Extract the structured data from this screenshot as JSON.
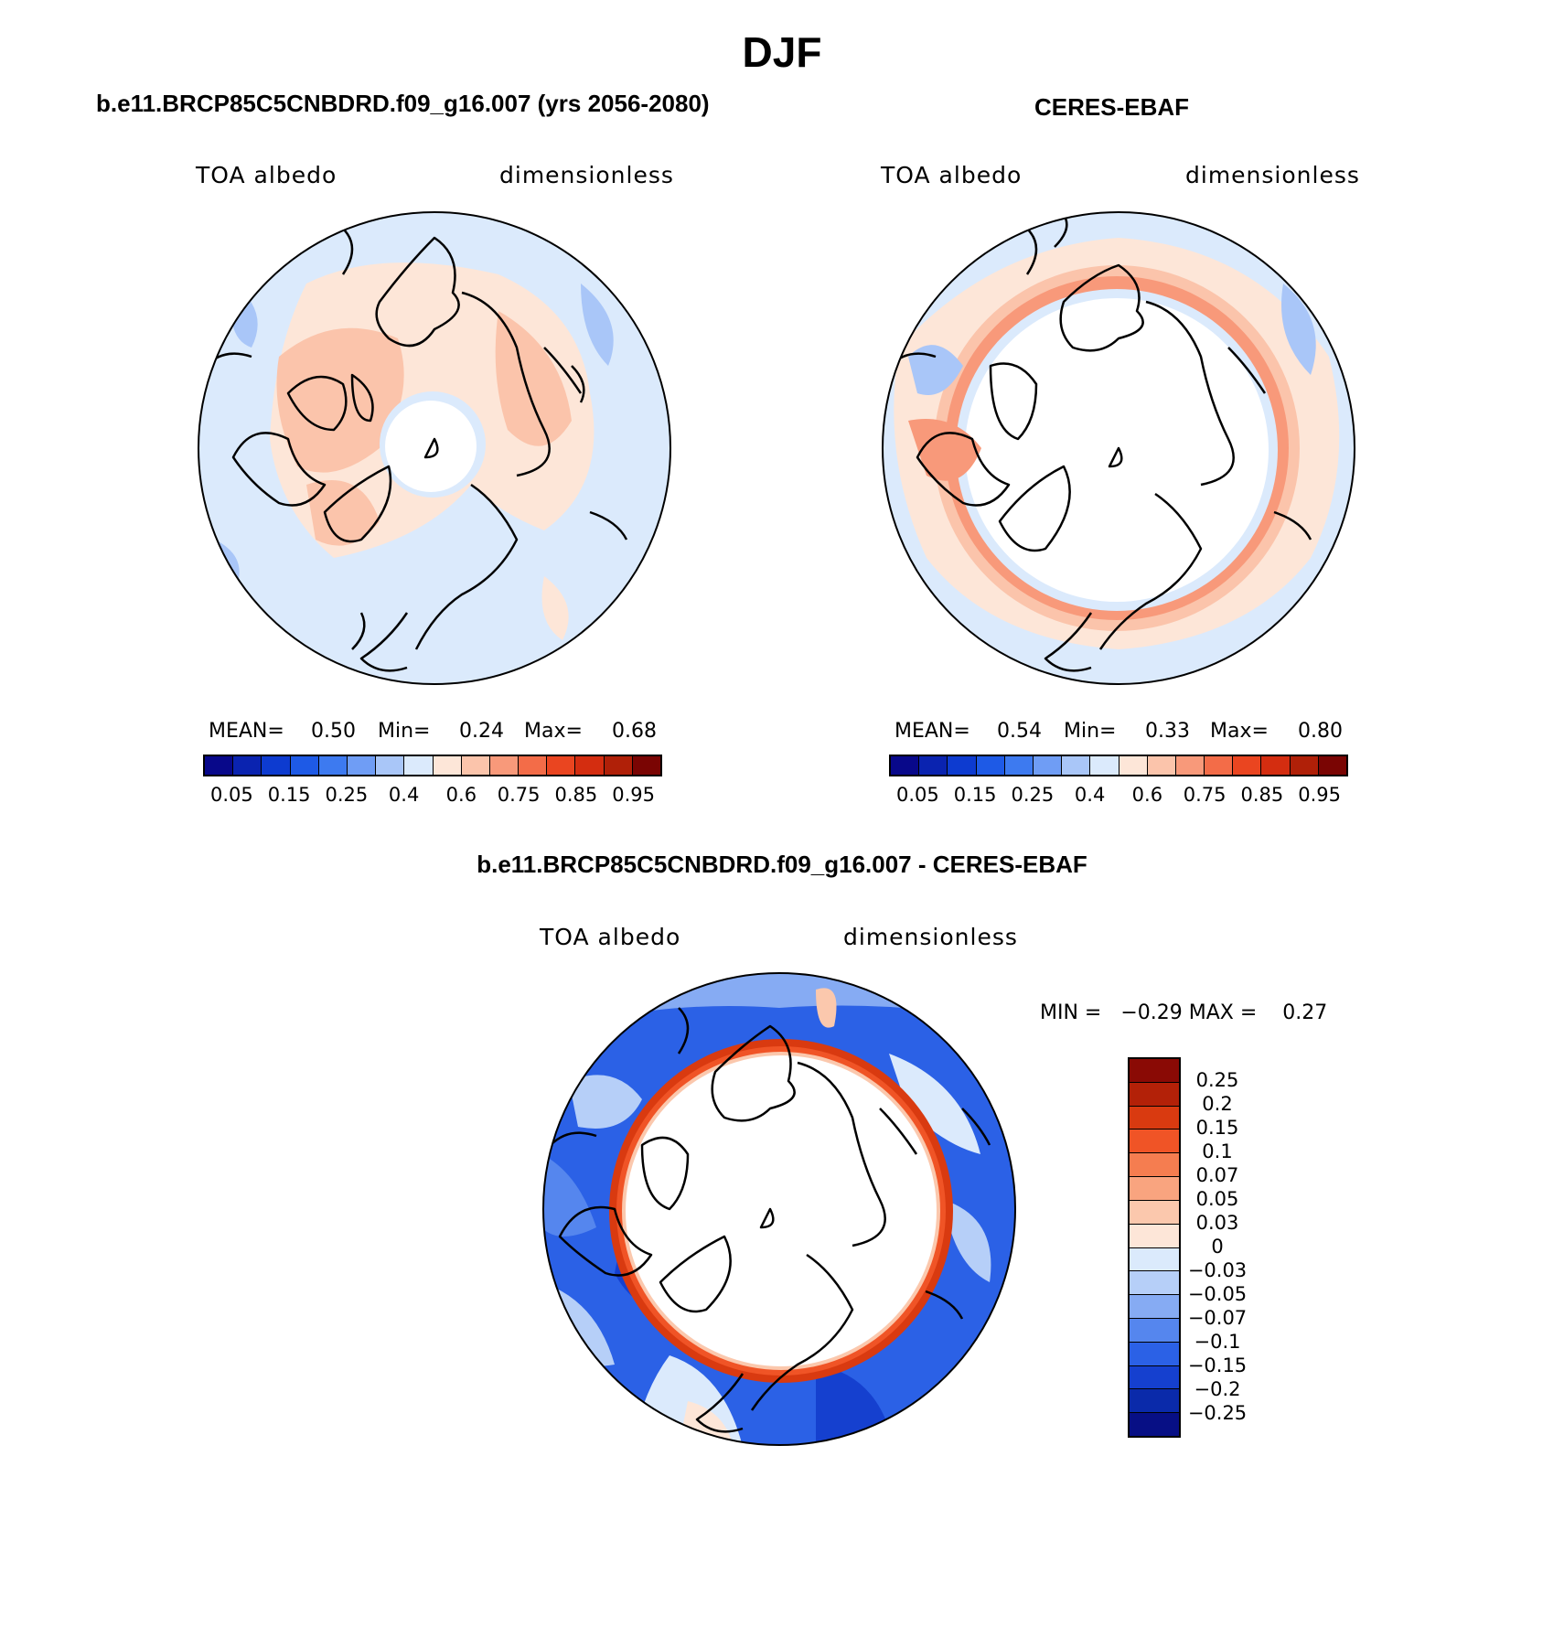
{
  "title": "DJF",
  "panels": {
    "model": {
      "title": "b.e11.BRCP85C5CNBDRD.f09_g16.007 (yrs 2056-2080)",
      "var_label": "TOA albedo",
      "units": "dimensionless",
      "stats": {
        "mean_label": "MEAN=",
        "mean": "0.50",
        "min_label": "Min=",
        "min": "0.24",
        "max_label": "Max=",
        "max": "0.68"
      }
    },
    "obs": {
      "title": "CERES-EBAF",
      "var_label": "TOA albedo",
      "units": "dimensionless",
      "stats": {
        "mean_label": "MEAN=",
        "mean": "0.54",
        "min_label": "Min=",
        "min": "0.33",
        "max_label": "Max=",
        "max": "0.80"
      }
    },
    "diff": {
      "title": "b.e11.BRCP85C5CNBDRD.f09_g16.007 - CERES-EBAF",
      "var_label": "TOA albedo",
      "units": "dimensionless",
      "minmax": "MIN =   −0.29 MAX =    0.27"
    }
  },
  "colorbar_abs": {
    "colors": [
      "#08088a",
      "#0a23b0",
      "#0d3bd0",
      "#1e5ae6",
      "#3d7af0",
      "#6f9df5",
      "#a9c6f8",
      "#dbeafc",
      "#fde6d8",
      "#fbc4ab",
      "#f8997a",
      "#f36c48",
      "#ea4520",
      "#d42d10",
      "#b02008",
      "#7a0503"
    ],
    "ticks": [
      "0.05",
      "0.15",
      "0.25",
      "0.4",
      "0.6",
      "0.75",
      "0.85",
      "0.95"
    ]
  },
  "colorbar_diff": {
    "colors": [
      "#8a0a05",
      "#b32108",
      "#d93a10",
      "#f05426",
      "#f57d50",
      "#f9a47f",
      "#fbc8ad",
      "#fde6d8",
      "#dbeafc",
      "#b6cff8",
      "#86abf3",
      "#5586ee",
      "#2b61e6",
      "#1540cf",
      "#0a2aaa",
      "#070f85"
    ],
    "ticks": [
      "0.25",
      "0.2",
      "0.15",
      "0.1",
      "0.07",
      "0.05",
      "0.03",
      "0",
      "−0.03",
      "−0.05",
      "−0.07",
      "−0.1",
      "−0.15",
      "−0.2",
      "−0.25"
    ]
  }
}
